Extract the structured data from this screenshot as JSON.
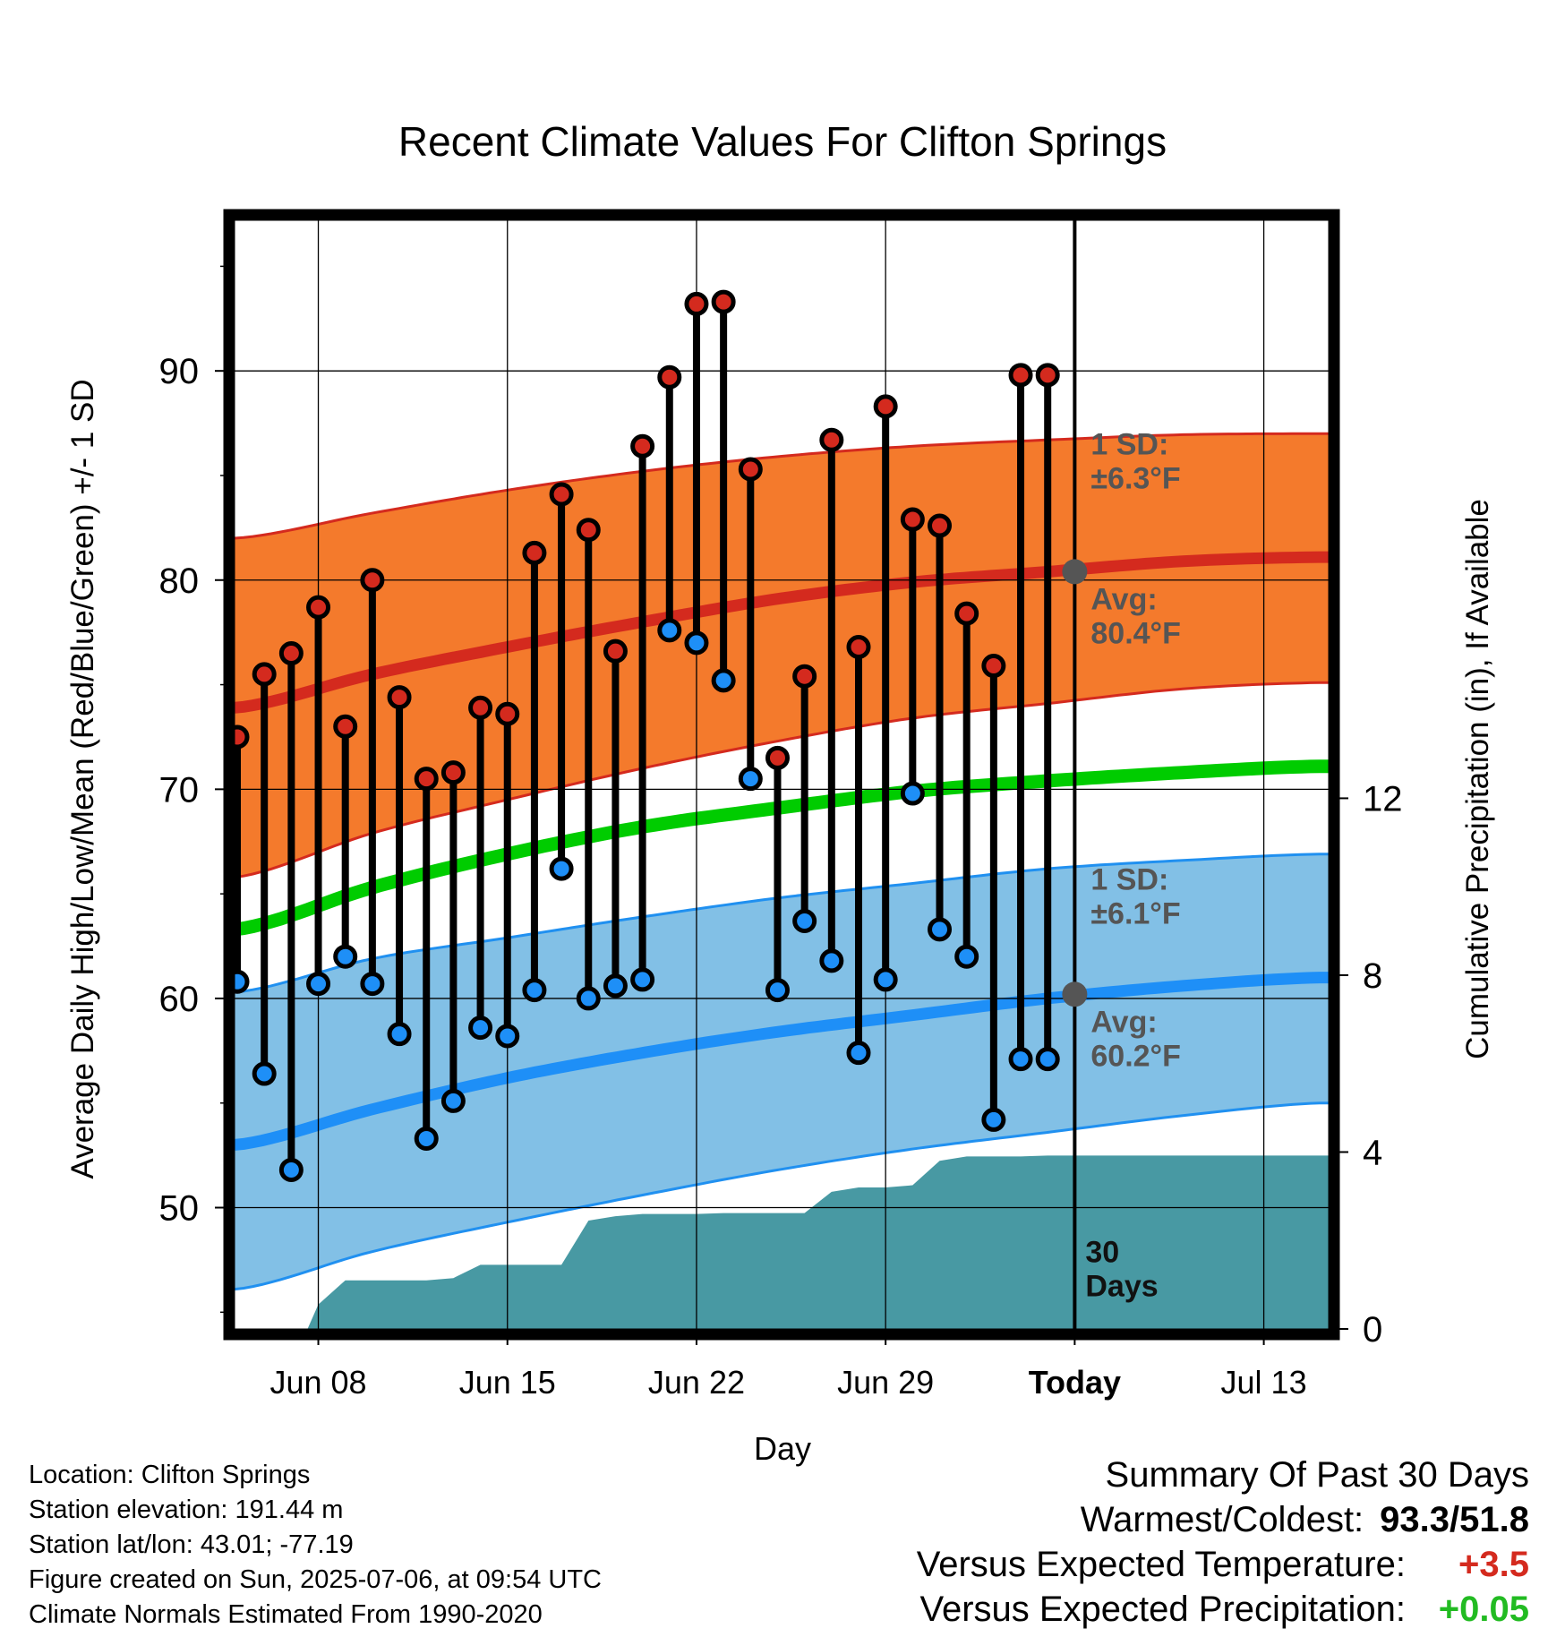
{
  "title": "Recent Climate Values For Clifton Springs",
  "colors": {
    "high_band": "#f47a2c",
    "high_band_edge": "#d42a1e",
    "high_avg": "#d42a1e",
    "low_band": "#82c0e6",
    "low_band_edge": "#2090f0",
    "low_avg": "#1e8ff7",
    "mean_line": "#00cc00",
    "precip_fill": "#4899a3",
    "high_marker": "#d42a1e",
    "low_marker": "#1e8ff7",
    "today_marker": "#555555",
    "annotation_text": "#555555",
    "positive_temp": "#d42a1e",
    "positive_precip": "#22bb22"
  },
  "chart_data": {
    "type": "line",
    "title": "Recent Climate Values For Clifton Springs",
    "xlabel": "Day",
    "ylabel_left": "Average Daily High/Low/Mean (Red/Blue/Green) +/- 1 SD",
    "ylabel_right": "Cumulative Precipitation (in), If Available",
    "x_ticks": [
      {
        "day": 8,
        "label": "Jun 08"
      },
      {
        "day": 15,
        "label": "Jun 15"
      },
      {
        "day": 22,
        "label": "Jun 22"
      },
      {
        "day": 29,
        "label": "Jun 29"
      },
      {
        "day": 36,
        "label": "Today"
      },
      {
        "day": 43,
        "label": "Jul 13"
      }
    ],
    "xlim": [
      4.9,
      45.4
    ],
    "ylim_left": [
      44.2,
      97.2
    ],
    "y_ticks_left": [
      50,
      60,
      70,
      80,
      90
    ],
    "ylim_right": [
      0,
      25.07
    ],
    "y_ticks_right": [
      0,
      4,
      8,
      12
    ],
    "today_day": 36,
    "grid": true,
    "normals": {
      "days": [
        5,
        10,
        15,
        20,
        25,
        30,
        35,
        40,
        45
      ],
      "high_avg": [
        73.9,
        75.5,
        76.8,
        78.0,
        79.1,
        79.9,
        80.4,
        80.9,
        81.1
      ],
      "high_upper": [
        82.0,
        83.2,
        84.3,
        85.2,
        85.9,
        86.4,
        86.7,
        86.95,
        87.0
      ],
      "high_lower": [
        65.8,
        67.9,
        69.5,
        71.0,
        72.3,
        73.4,
        74.1,
        74.8,
        75.1
      ],
      "mean": [
        63.3,
        65.3,
        66.9,
        68.2,
        69.1,
        69.9,
        70.4,
        70.8,
        71.1
      ],
      "low_avg": [
        53.0,
        54.7,
        56.2,
        57.4,
        58.4,
        59.2,
        60.0,
        60.6,
        61.0
      ],
      "low_upper": [
        60.3,
        61.9,
        62.9,
        63.9,
        64.8,
        65.5,
        66.2,
        66.6,
        66.9
      ],
      "low_lower": [
        46.1,
        47.9,
        49.3,
        50.6,
        51.8,
        52.8,
        53.6,
        54.4,
        55.0
      ]
    },
    "series": [
      {
        "name": "High",
        "days": [
          5,
          6,
          7,
          8,
          9,
          10,
          11,
          12,
          13,
          14,
          15,
          16,
          17,
          18,
          19,
          20,
          21,
          22,
          23,
          24,
          25,
          26,
          27,
          28,
          29,
          30,
          31,
          32,
          33,
          34,
          35
        ],
        "values": [
          72.5,
          75.5,
          76.5,
          78.7,
          73.0,
          80.0,
          74.4,
          70.5,
          70.8,
          73.9,
          73.6,
          81.3,
          84.1,
          82.4,
          76.6,
          86.4,
          89.7,
          93.2,
          93.3,
          85.3,
          71.5,
          75.4,
          86.7,
          76.8,
          88.3,
          82.9,
          82.6,
          78.4,
          75.9,
          89.8,
          89.8
        ]
      },
      {
        "name": "Low",
        "days": [
          5,
          6,
          7,
          8,
          9,
          10,
          11,
          12,
          13,
          14,
          15,
          16,
          17,
          18,
          19,
          20,
          21,
          22,
          23,
          24,
          25,
          26,
          27,
          28,
          29,
          30,
          31,
          32,
          33,
          34,
          35
        ],
        "values": [
          60.8,
          56.4,
          51.8,
          60.7,
          62.0,
          60.7,
          58.3,
          53.3,
          55.1,
          58.6,
          58.2,
          60.4,
          66.2,
          60.0,
          60.6,
          60.9,
          77.6,
          77.0,
          75.2,
          70.5,
          60.4,
          63.7,
          61.8,
          57.4,
          60.9,
          69.8,
          63.3,
          62.0,
          54.2,
          57.1,
          57.1
        ]
      },
      {
        "name": "Cumulative Precipitation",
        "days": [
          5,
          7.6,
          8,
          9,
          10,
          11,
          12,
          13,
          14,
          15,
          16,
          17,
          18,
          19,
          20,
          21,
          22,
          23,
          24,
          25,
          26,
          27,
          28,
          29,
          30,
          31,
          32,
          33,
          34,
          35,
          36,
          45.4
        ],
        "values": [
          0,
          0,
          0.55,
          1.1,
          1.1,
          1.1,
          1.1,
          1.15,
          1.45,
          1.45,
          1.45,
          1.45,
          2.45,
          2.55,
          2.6,
          2.6,
          2.6,
          2.62,
          2.62,
          2.62,
          2.62,
          3.1,
          3.2,
          3.2,
          3.25,
          3.8,
          3.9,
          3.9,
          3.9,
          3.92,
          3.92,
          3.92
        ]
      }
    ],
    "annotations": {
      "high_sd": [
        "1 SD:",
        "±6.3°F"
      ],
      "high_avg": [
        "Avg:",
        "80.4°F"
      ],
      "low_sd": [
        "1 SD:",
        "±6.1°F"
      ],
      "low_avg": [
        "Avg:",
        "60.2°F"
      ],
      "high_avg_today": 80.4,
      "low_avg_today": 60.2,
      "days_label": [
        "30",
        "Days"
      ]
    }
  },
  "metadata": {
    "location": "Location: Clifton Springs",
    "elevation": "Station elevation: 191.44 m",
    "latlon": "Station lat/lon: 43.01; -77.19",
    "created": "Figure created on Sun, 2025-07-06, at 09:54 UTC",
    "normals": "Climate Normals Estimated From 1990-2020"
  },
  "summary": {
    "heading": "Summary Of Past 30 Days",
    "warmest_label": "Warmest/Coldest:",
    "warmest_value": "93.3/51.8",
    "temp_label": "Versus Expected Temperature:",
    "temp_value": "+3.5",
    "precip_label": "Versus Expected Precipitation:",
    "precip_value": "+0.05"
  }
}
